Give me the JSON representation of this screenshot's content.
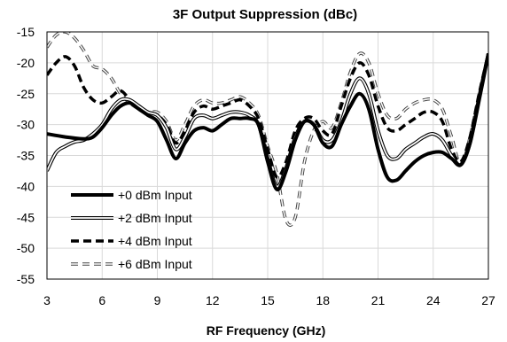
{
  "chart_data": {
    "type": "line",
    "title": "3F Output Suppression (dBc)",
    "xlabel": "RF Frequency (GHz)",
    "ylabel": "",
    "xlim": [
      3,
      27
    ],
    "ylim": [
      -55,
      -15
    ],
    "xticks": [
      3,
      6,
      9,
      12,
      15,
      18,
      21,
      24,
      27
    ],
    "yticks": [
      -15,
      -20,
      -25,
      -30,
      -35,
      -40,
      -45,
      -50,
      -55
    ],
    "grid": true,
    "legend_position": "bottom-left",
    "colors": {
      "line": "#000000",
      "grid": "#d9d9d9",
      "background": "#ffffff"
    },
    "series": [
      {
        "name": "+0 dBm Input",
        "style": "thick-solid",
        "x": [
          3,
          4,
          5,
          5.5,
          6,
          6.5,
          7,
          7.5,
          8,
          8.5,
          9,
          9.5,
          10,
          10.5,
          11,
          11.5,
          12,
          12.5,
          13,
          13.5,
          14,
          14.5,
          15,
          15.5,
          16,
          16.5,
          17,
          17.5,
          18,
          18.5,
          19,
          19.5,
          20,
          20.5,
          21,
          21.5,
          22,
          22.5,
          23,
          23.5,
          24,
          24.5,
          25,
          25.5,
          26,
          26.5,
          27
        ],
        "y": [
          -31.5,
          -32,
          -32.3,
          -32,
          -30.5,
          -28.5,
          -27,
          -26.5,
          -27.5,
          -28.5,
          -29.5,
          -32.5,
          -35.5,
          -33,
          -31,
          -30.5,
          -31,
          -30,
          -29,
          -29,
          -29,
          -30,
          -36,
          -40.5,
          -37.5,
          -32.5,
          -29.5,
          -30,
          -33,
          -33.5,
          -30,
          -27,
          -25,
          -27.5,
          -34,
          -38.5,
          -39,
          -37.5,
          -36,
          -35,
          -34.5,
          -34.5,
          -35.5,
          -36.5,
          -33,
          -26,
          -18.5
        ]
      },
      {
        "name": "+2 dBm Input",
        "style": "double-line",
        "x": [
          3,
          3.5,
          4,
          4.5,
          5,
          5.5,
          6,
          6.5,
          7,
          7.5,
          8,
          8.5,
          9,
          9.5,
          10,
          10.5,
          11,
          11.5,
          12,
          12.5,
          13,
          13.5,
          14,
          14.5,
          15,
          15.5,
          16,
          16.5,
          17,
          17.5,
          18,
          18.5,
          19,
          19.5,
          20,
          20.5,
          21,
          21.5,
          22,
          22.5,
          23,
          23.5,
          24,
          24.5,
          25,
          25.5,
          26,
          26.5,
          27
        ],
        "y": [
          -37.5,
          -34.5,
          -33.5,
          -32.8,
          -32.5,
          -31.5,
          -30,
          -27.5,
          -26,
          -26,
          -27,
          -28,
          -28.5,
          -30.5,
          -34,
          -32,
          -29,
          -28.5,
          -29,
          -28.5,
          -28,
          -28,
          -28.5,
          -30,
          -35.5,
          -40,
          -37,
          -32,
          -29.5,
          -30,
          -32.5,
          -32.5,
          -29.5,
          -25,
          -22.5,
          -25,
          -31,
          -35,
          -35.5,
          -34,
          -33,
          -32,
          -31.5,
          -32.5,
          -35,
          -36.5,
          -33,
          -25.5,
          -18.5
        ]
      },
      {
        "name": "+4 dBm Input",
        "style": "thick-dash",
        "x": [
          3,
          3.5,
          4,
          4.5,
          5,
          5.5,
          6,
          6.5,
          7,
          7.5,
          8,
          8.5,
          9,
          9.5,
          10,
          10.5,
          11,
          11.5,
          12,
          12.5,
          13,
          13.5,
          14,
          14.5,
          15,
          15.5,
          16,
          16.5,
          17,
          17.5,
          18,
          18.5,
          19,
          19.5,
          20,
          20.5,
          21,
          21.5,
          22,
          22.5,
          23,
          23.5,
          24,
          24.5,
          25,
          25.5,
          26,
          26.5,
          27
        ],
        "y": [
          -22,
          -20,
          -19,
          -20.5,
          -24,
          -26,
          -26.5,
          -25.5,
          -24.5,
          -26,
          -27.5,
          -28,
          -28.5,
          -30,
          -33,
          -31,
          -28,
          -27,
          -27.5,
          -27,
          -26.5,
          -26,
          -27,
          -29,
          -34,
          -38.5,
          -36,
          -31,
          -29,
          -29,
          -31,
          -31.5,
          -27,
          -22.5,
          -20,
          -22,
          -27,
          -30.5,
          -31,
          -30,
          -29,
          -28,
          -28,
          -29.5,
          -34,
          -36,
          -32,
          -25,
          -18.5
        ]
      },
      {
        "name": "+6 dBm Input",
        "style": "light-dash",
        "x": [
          3,
          3.5,
          4,
          4.5,
          5,
          5.5,
          6,
          6.5,
          7,
          7.5,
          8,
          8.5,
          9,
          9.5,
          10,
          10.5,
          11,
          11.5,
          12,
          12.5,
          13,
          13.5,
          14,
          14.5,
          15,
          15.5,
          16,
          16.5,
          17,
          17.5,
          18,
          18.5,
          19,
          19.5,
          20,
          20.5,
          21,
          21.5,
          22,
          22.5,
          23,
          23.5,
          24,
          24.5,
          25,
          25.5,
          26,
          26.5,
          27
        ],
        "y": [
          -17.5,
          -15.5,
          -15,
          -16,
          -18,
          -20.5,
          -21,
          -22.5,
          -25,
          -26.5,
          -27.5,
          -28,
          -28,
          -29.5,
          -32.5,
          -30,
          -27,
          -26,
          -26.5,
          -26.5,
          -26,
          -25.5,
          -26.5,
          -28.5,
          -33.5,
          -38,
          -45.5,
          -45,
          -36,
          -31,
          -29.5,
          -30.5,
          -26.5,
          -21.5,
          -18.5,
          -20,
          -25,
          -28.5,
          -29,
          -27.5,
          -26.5,
          -26,
          -26,
          -27.5,
          -32,
          -36.5,
          -32,
          -25,
          -18.5
        ]
      }
    ]
  }
}
